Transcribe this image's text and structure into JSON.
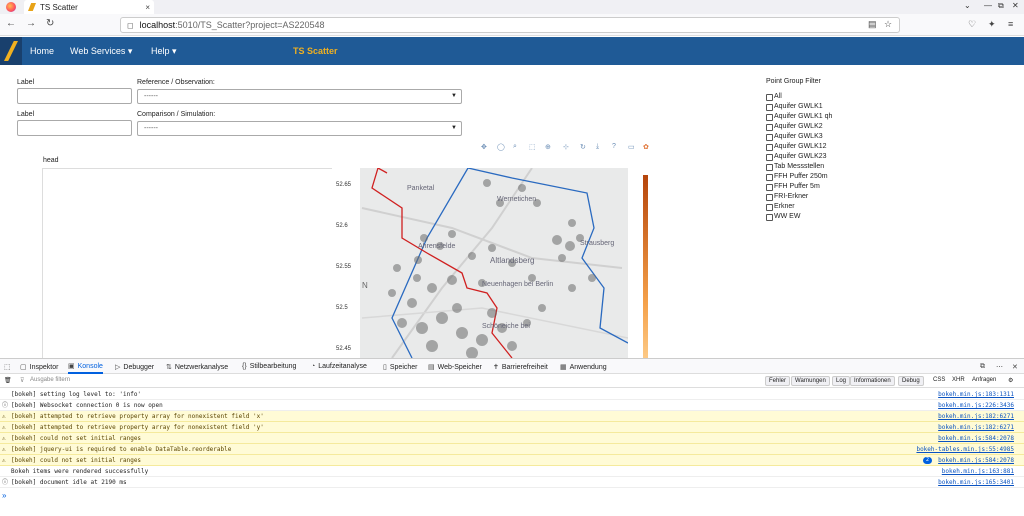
{
  "browser": {
    "tab_title": "TS Scatter",
    "tab_close": "×",
    "url_host": "localhost",
    "url_path": ":5010/TS_Scatter?project=AS220548",
    "back": "←",
    "forward": "→",
    "reload": "↻",
    "min": "—",
    "restore": "⧉",
    "close": "✕",
    "chevron": "⌄"
  },
  "app": {
    "nav": {
      "home": "Home",
      "web_services": "Web Services ▾",
      "help": "Help ▾"
    },
    "title": "TS Scatter"
  },
  "form": {
    "label1": "Label",
    "label2": "Label",
    "reference_label": "Reference / Observation:",
    "reference_value": "------",
    "comparison_label": "Comparison / Simulation:",
    "comparison_value": "------"
  },
  "plot": {
    "title": "head",
    "yticks": [
      "52.65",
      "52.6",
      "52.55",
      "52.5",
      "52.45"
    ],
    "places": [
      "Panketal",
      "Wernetichen",
      "Ahrensfelde",
      "Altlandsberg",
      "Strausberg",
      "Neuenhagen bei Berlin",
      "Schöneiche bei"
    ],
    "axis_letter": "N"
  },
  "filter": {
    "title": "Point Group Filter",
    "items": [
      "All",
      "Aquifer GWLK1",
      "Aquifer GWLK1 qh",
      "Aquifer GWLK2",
      "Aquifer GWLK3",
      "Aquifer GWLK12",
      "Aquifer GWLK23",
      "Tab Messstellen",
      "FFH Puffer 250m",
      "FFH Puffer 5m",
      "FRI-Erkner",
      "Erkner",
      "WW EW"
    ]
  },
  "devtools": {
    "tabs": [
      "Inspektor",
      "Konsole",
      "Debugger",
      "Netzwerkanalyse",
      "Stilbearbeitung",
      "Laufzeitanalyse",
      "Speicher",
      "Web-Speicher",
      "Barrierefreiheit",
      "Anwendung"
    ],
    "filter_placeholder": "Ausgabe filtern",
    "filter_buttons": [
      "Fehler",
      "Warnungen",
      "Log",
      "Informationen",
      "Debug"
    ],
    "filter_text": [
      "CSS",
      "XHR",
      "Anfragen"
    ],
    "logs": [
      {
        "type": "log",
        "text": "[bokeh] setting log level to: 'info'",
        "src": "bokeh.min.js:183:1311"
      },
      {
        "type": "info",
        "text": "[bokeh] Websocket connection 0 is now open",
        "src": "bokeh.min.js:226:3436"
      },
      {
        "type": "warn",
        "text": "[bokeh] attempted to retrieve property array for nonexistent field 'x'",
        "src": "bokeh.min.js:182:6271"
      },
      {
        "type": "warn",
        "text": "[bokeh] attempted to retrieve property array for nonexistent field 'y'",
        "src": "bokeh.min.js:182:6271"
      },
      {
        "type": "warn",
        "text": "[bokeh] could not set initial ranges",
        "src": "bokeh.min.js:584:2078"
      },
      {
        "type": "warn",
        "text": "[bokeh] jquery-ui is required to enable DataTable.reorderable",
        "src": "bokeh-tables.min.js:55:4985"
      },
      {
        "type": "warn",
        "text": "[bokeh] could not set initial ranges",
        "src": "bokeh.min.js:584:2078",
        "badge": "2"
      },
      {
        "type": "log",
        "text": "Bokeh items were rendered successfully",
        "src": "bokeh.min.js:163:881"
      },
      {
        "type": "info",
        "text": "[bokeh] document idle at 2190 ms",
        "src": "bokeh.min.js:165:3401"
      }
    ],
    "prompt": "»"
  }
}
